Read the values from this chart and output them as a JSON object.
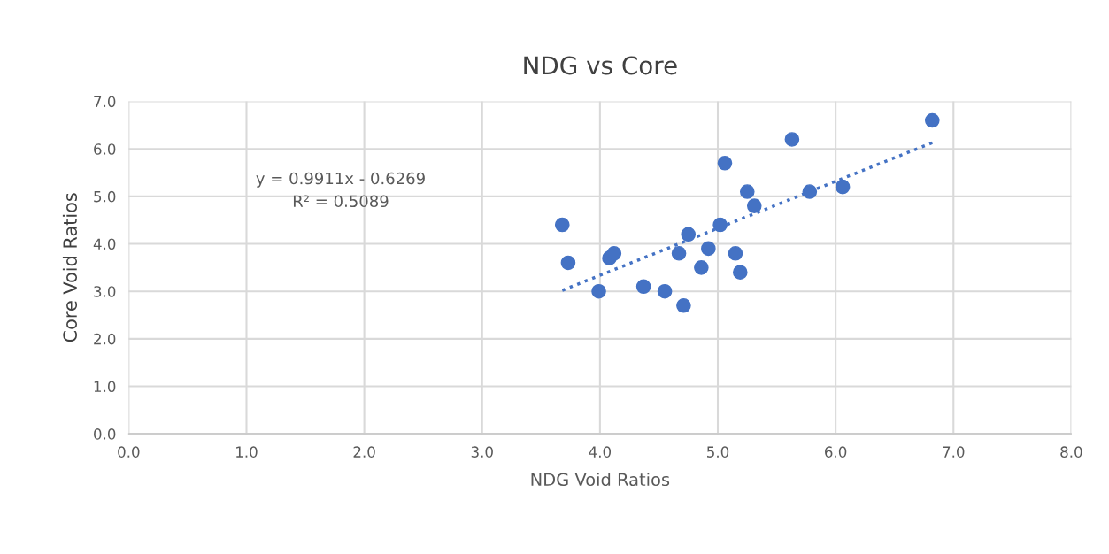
{
  "chart_data": {
    "type": "scatter",
    "title": "NDG vs Core",
    "xlabel": "NDG Void Ratios",
    "ylabel": "Core Void Ratios",
    "series": [
      {
        "color": "#4472c4",
        "marker": "circle",
        "x": [
          3.68,
          3.73,
          3.99,
          4.08,
          4.12,
          4.37,
          4.55,
          4.71,
          4.67,
          4.75,
          4.86,
          4.92,
          5.02,
          5.06,
          5.15,
          5.19,
          5.25,
          5.31,
          5.63,
          5.78,
          6.06,
          6.82
        ],
        "values": [
          4.4,
          3.6,
          3.0,
          3.7,
          3.8,
          3.1,
          3.0,
          2.7,
          3.8,
          4.2,
          3.5,
          3.9,
          4.4,
          5.7,
          3.8,
          3.4,
          5.1,
          4.8,
          6.2,
          5.1,
          5.2,
          6.6
        ]
      },
      {
        "type": "line",
        "color": "#4472c4",
        "line_style": "dotted",
        "x": [
          3.68,
          6.82
        ],
        "values": [
          3.02,
          6.13
        ]
      }
    ],
    "annotations": [
      "y = 0.9911x - 0.6269\nR² = 0.5089"
    ],
    "xlim": [
      0,
      8
    ],
    "xticks": [
      {
        "value": 0,
        "label": "0.0"
      },
      {
        "value": 1,
        "label": "1.0"
      },
      {
        "value": 2,
        "label": "2.0"
      },
      {
        "value": 3,
        "label": "3.0"
      },
      {
        "value": 4,
        "label": "4.0"
      },
      {
        "value": 5,
        "label": "5.0"
      },
      {
        "value": 6,
        "label": "6.0"
      },
      {
        "value": 7,
        "label": "7.0"
      },
      {
        "value": 8,
        "label": "8.0"
      }
    ],
    "ylim": [
      0,
      7
    ],
    "yticks": [
      {
        "value": 0,
        "label": "0.0"
      },
      {
        "value": 1,
        "label": "1.0"
      },
      {
        "value": 2,
        "label": "2.0"
      },
      {
        "value": 3,
        "label": "3.0"
      },
      {
        "value": 4,
        "label": "4.0"
      },
      {
        "value": 5,
        "label": "5.0"
      },
      {
        "value": 6,
        "label": "6.0"
      },
      {
        "value": 7,
        "label": "7.0"
      }
    ],
    "grid": true
  }
}
